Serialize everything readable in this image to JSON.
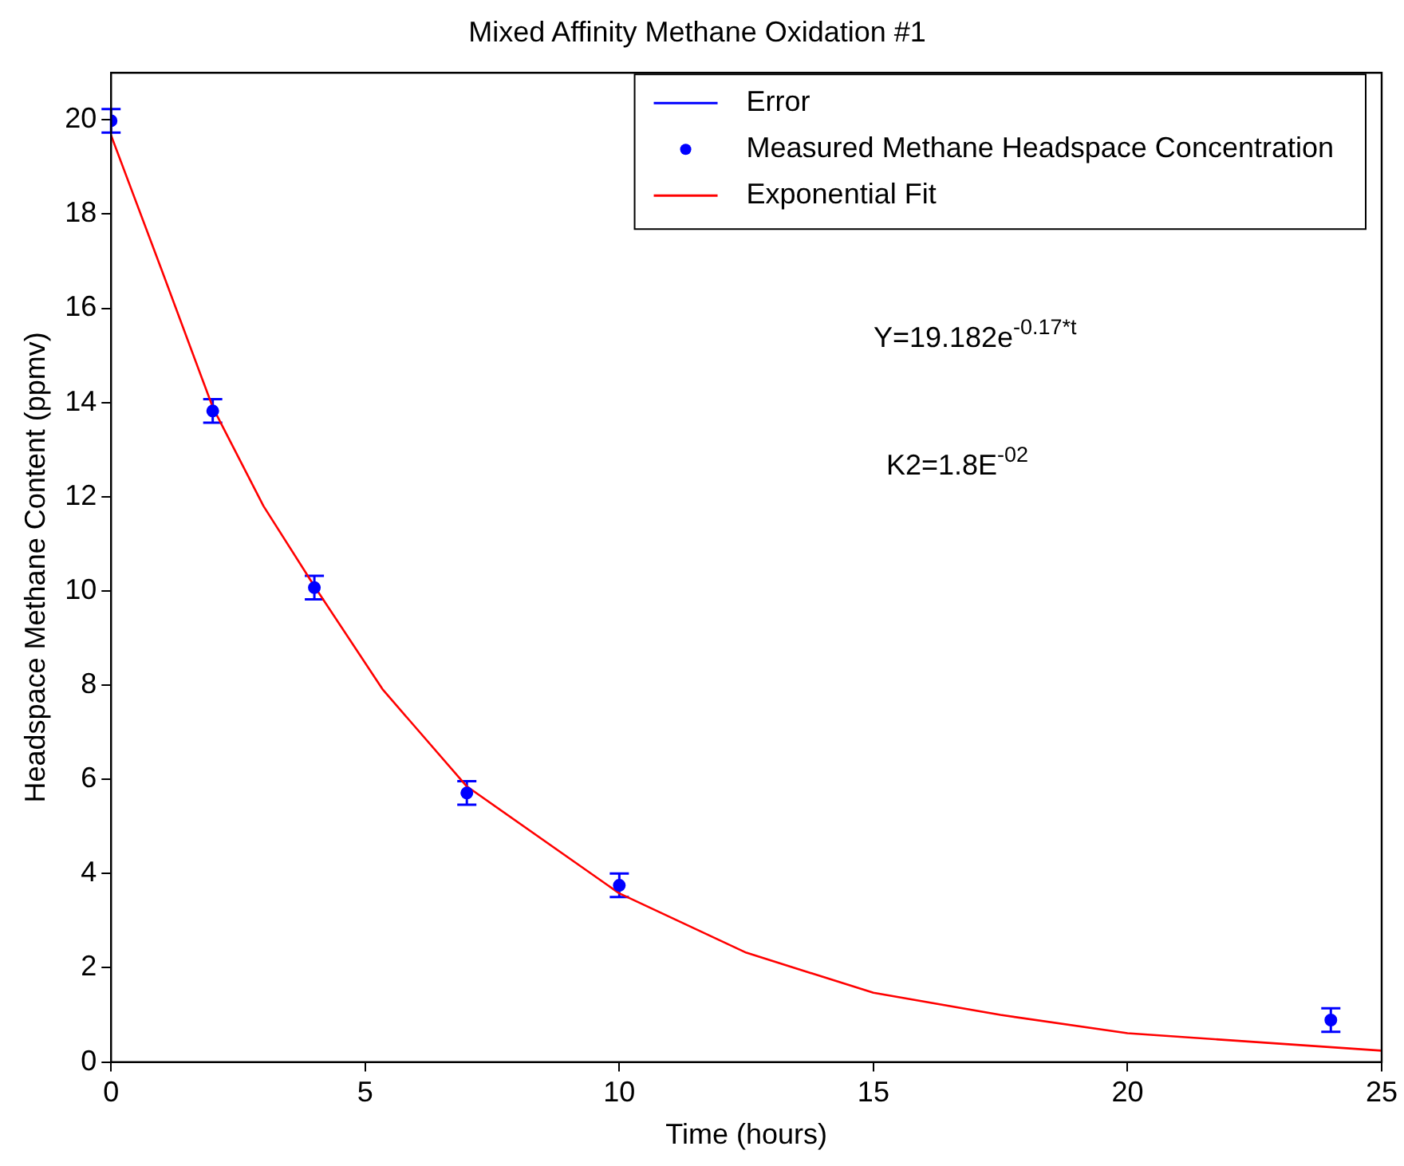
{
  "chart_data": {
    "type": "scatter",
    "title": "Mixed Affinity Methane Oxidation #1",
    "xlabel": "Time (hours)",
    "ylabel": "Headspace Methane Content (ppmv)",
    "xlim": [
      0,
      25
    ],
    "xticks": [
      0,
      5,
      10,
      15,
      20,
      25
    ],
    "ylim": [
      0,
      21
    ],
    "yticks": [
      0,
      2,
      4,
      6,
      8,
      10,
      12,
      14,
      16,
      18,
      20
    ],
    "grid": false,
    "legend": "top right",
    "annotations": [
      "Y=19.182e$^{-0.17*t}$",
      "K2=1.8E$^{-02}$"
    ],
    "series": [
      {
        "name": "Error",
        "color": "#0000ff",
        "x": [
          0,
          2,
          4,
          7,
          10,
          24
        ],
        "values": [
          19.98,
          13.82,
          10.07,
          5.71,
          3.75,
          0.89
        ],
        "errors": [
          0.25,
          0.25,
          0.25,
          0.25,
          0.25,
          0.25
        ]
      },
      {
        "name": "Measured Methane Headspace Concentration",
        "marker": "circle",
        "color": "#0000ff",
        "x": [
          0,
          2,
          4,
          7,
          10,
          24
        ],
        "values": [
          19.98,
          13.82,
          10.07,
          5.71,
          3.75,
          0.89
        ]
      },
      {
        "name": "Exponential Fit",
        "type": "line",
        "marker": "none",
        "color": "#ff0000",
        "x": [
          0,
          1,
          2,
          3,
          4,
          5.35,
          7,
          10,
          12.5,
          15,
          17.5,
          20,
          25
        ],
        "values": [
          19.67,
          16.8,
          13.9,
          11.8,
          10.1,
          7.9,
          5.85,
          3.58,
          2.32,
          1.47,
          1.0,
          0.61,
          0.24
        ]
      }
    ]
  }
}
